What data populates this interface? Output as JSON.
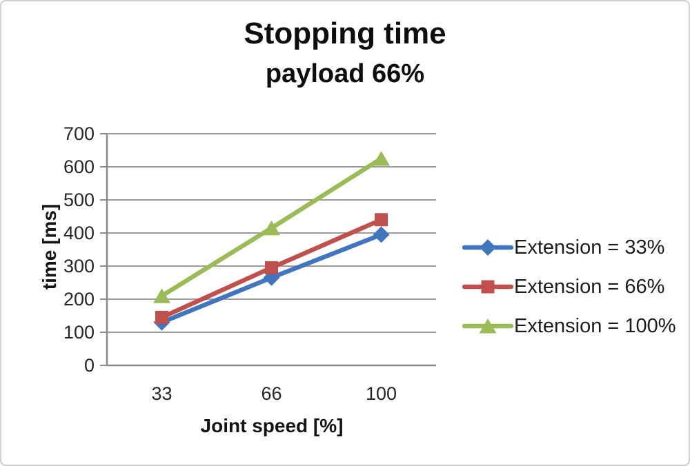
{
  "chart": {
    "title": "Stopping time",
    "subtitle": "payload 66%"
  },
  "chart_data": {
    "type": "line",
    "categories": [
      "33",
      "66",
      "100"
    ],
    "series": [
      {
        "name": "Extension = 33%",
        "values": [
          130,
          265,
          395
        ],
        "color": "#4176BE",
        "marker": "diamond"
      },
      {
        "name": "Extension = 66%",
        "values": [
          145,
          295,
          440
        ],
        "color": "#C0504D",
        "marker": "square"
      },
      {
        "name": "Extension = 100%",
        "values": [
          210,
          415,
          625
        ],
        "color": "#9BBB59",
        "marker": "triangle"
      }
    ],
    "title": "Stopping time",
    "subtitle": "payload 66%",
    "xlabel": "Joint speed [%]",
    "ylabel": "time [ms]",
    "ylim": [
      0,
      700
    ],
    "ytick_step": 100,
    "grid": true,
    "legend_position": "right"
  },
  "colors": {
    "gridline": "#9b9b9b",
    "axis": "#8a8a8a",
    "tick_text": "#262626",
    "title_text": "#0d0d0d",
    "border": "#cfcfcf",
    "background": "#ffffff"
  }
}
